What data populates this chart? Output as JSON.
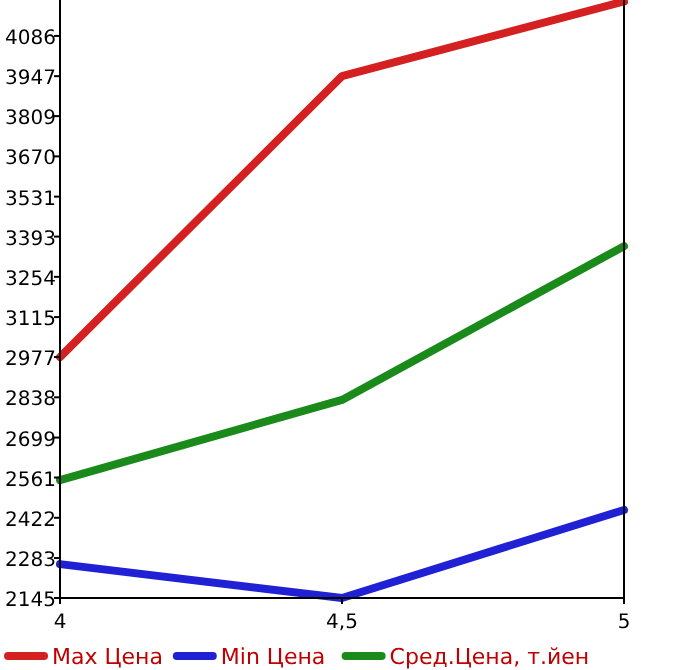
{
  "chart_data": {
    "type": "line",
    "x": [
      4,
      4.5,
      5
    ],
    "series": [
      {
        "name": "Max Цена",
        "color": "#d42020",
        "values": [
          2977,
          3947,
          4205
        ]
      },
      {
        "name": "Min Цена",
        "color": "#2020d4",
        "values": [
          2262,
          2145,
          2449
        ]
      },
      {
        "name": "Сред.Цена, т.йен",
        "color": "#1a8a1a",
        "values": [
          2552,
          2829,
          3360
        ]
      }
    ],
    "xlim": [
      4,
      5
    ],
    "xticks": [
      4,
      {
        "value": 4.5,
        "label": "4,5"
      },
      5
    ],
    "ylim": [
      2145,
      4210
    ],
    "yticks": [
      2145,
      2283,
      2422,
      2561,
      2699,
      2838,
      2977,
      3115,
      3254,
      3393,
      3531,
      3670,
      3809,
      3947,
      4086
    ],
    "legend": "bottom",
    "marker": "none",
    "line_style": "solid"
  }
}
